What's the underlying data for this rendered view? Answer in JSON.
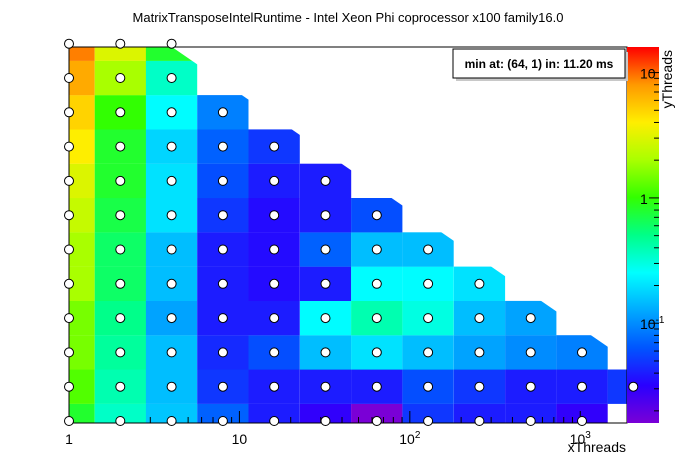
{
  "chart_data": {
    "type": "heatmap",
    "title": "MatrixTransposeIntelRuntime - Intel Xeon Phi coprocessor x100 family16.0",
    "xlabel": "xThreads",
    "ylabel": "yThreads",
    "x_scale": "log2",
    "y_scale": "log2",
    "z_scale": "log",
    "x_tick_labels": [
      "1",
      "10",
      "10",
      "10"
    ],
    "x_tick_exponents": [
      "",
      "",
      "2",
      "3"
    ],
    "z_tick_labels": [
      "10",
      "1",
      "10"
    ],
    "z_tick_exponents": [
      "",
      "",
      "-1"
    ],
    "x_values": [
      1,
      2,
      4,
      8,
      16,
      32,
      64,
      128,
      256,
      512,
      1024,
      2048
    ],
    "y_values": [
      1,
      2,
      4,
      8,
      16,
      32,
      64,
      128,
      256,
      512,
      1024,
      2048
    ],
    "annotation": "min at: (64, 1) in: 11.20 ms",
    "colors": {
      "palette": [
        "#7a00d6",
        "#2a00ff",
        "#0055ff",
        "#00aaff",
        "#00ffff",
        "#00ff88",
        "#33ff00",
        "#aaff00",
        "#ffee00",
        "#ff9900",
        "#ff0000"
      ]
    },
    "series": [
      {
        "name": "",
        "cells": [
          {
            "x": 1,
            "y": 1,
            "z": 0.8
          },
          {
            "x": 2,
            "y": 1,
            "z": 0.35
          },
          {
            "x": 4,
            "y": 1,
            "z": 0.16
          },
          {
            "x": 8,
            "y": 1,
            "z": 0.07
          },
          {
            "x": 16,
            "y": 1,
            "z": 0.04
          },
          {
            "x": 32,
            "y": 1,
            "z": 0.03
          },
          {
            "x": 64,
            "y": 1,
            "z": 0.0112
          },
          {
            "x": 128,
            "y": 1,
            "z": 0.05
          },
          {
            "x": 256,
            "y": 1,
            "z": 0.04
          },
          {
            "x": 512,
            "y": 1,
            "z": 0.04
          },
          {
            "x": 1024,
            "y": 1,
            "z": 0.03
          },
          {
            "x": 1,
            "y": 2,
            "z": 1.2
          },
          {
            "x": 2,
            "y": 2,
            "z": 0.4
          },
          {
            "x": 4,
            "y": 2,
            "z": 0.15
          },
          {
            "x": 8,
            "y": 2,
            "z": 0.05
          },
          {
            "x": 16,
            "y": 2,
            "z": 0.04
          },
          {
            "x": 32,
            "y": 2,
            "z": 0.04
          },
          {
            "x": 64,
            "y": 2,
            "z": 0.04
          },
          {
            "x": 128,
            "y": 2,
            "z": 0.06
          },
          {
            "x": 256,
            "y": 2,
            "z": 0.05
          },
          {
            "x": 512,
            "y": 2,
            "z": 0.04
          },
          {
            "x": 1024,
            "y": 2,
            "z": 0.04
          },
          {
            "x": 2048,
            "y": 2,
            "z": 0.05
          },
          {
            "x": 1,
            "y": 4,
            "z": 1.5
          },
          {
            "x": 2,
            "y": 4,
            "z": 0.45
          },
          {
            "x": 4,
            "y": 4,
            "z": 0.15
          },
          {
            "x": 8,
            "y": 4,
            "z": 0.045
          },
          {
            "x": 16,
            "y": 4,
            "z": 0.06
          },
          {
            "x": 32,
            "y": 4,
            "z": 0.15
          },
          {
            "x": 64,
            "y": 4,
            "z": 0.2
          },
          {
            "x": 128,
            "y": 4,
            "z": 0.15
          },
          {
            "x": 256,
            "y": 4,
            "z": 0.12
          },
          {
            "x": 512,
            "y": 4,
            "z": 0.1
          },
          {
            "x": 1024,
            "y": 4,
            "z": 0.09
          },
          {
            "x": 1,
            "y": 8,
            "z": 1.5
          },
          {
            "x": 2,
            "y": 8,
            "z": 0.5
          },
          {
            "x": 4,
            "y": 8,
            "z": 0.12
          },
          {
            "x": 8,
            "y": 8,
            "z": 0.04
          },
          {
            "x": 16,
            "y": 8,
            "z": 0.04
          },
          {
            "x": 32,
            "y": 8,
            "z": 0.25
          },
          {
            "x": 64,
            "y": 8,
            "z": 0.4
          },
          {
            "x": 128,
            "y": 8,
            "z": 0.3
          },
          {
            "x": 256,
            "y": 8,
            "z": 0.15
          },
          {
            "x": 512,
            "y": 8,
            "z": 0.12
          },
          {
            "x": 1,
            "y": 16,
            "z": 2.0
          },
          {
            "x": 2,
            "y": 16,
            "z": 0.6
          },
          {
            "x": 4,
            "y": 16,
            "z": 0.15
          },
          {
            "x": 8,
            "y": 16,
            "z": 0.04
          },
          {
            "x": 16,
            "y": 16,
            "z": 0.035
          },
          {
            "x": 32,
            "y": 16,
            "z": 0.04
          },
          {
            "x": 64,
            "y": 16,
            "z": 0.25
          },
          {
            "x": 128,
            "y": 16,
            "z": 0.25
          },
          {
            "x": 256,
            "y": 16,
            "z": 0.2
          },
          {
            "x": 1,
            "y": 32,
            "z": 2.0
          },
          {
            "x": 2,
            "y": 32,
            "z": 0.6
          },
          {
            "x": 4,
            "y": 32,
            "z": 0.15
          },
          {
            "x": 8,
            "y": 32,
            "z": 0.04
          },
          {
            "x": 16,
            "y": 32,
            "z": 0.035
          },
          {
            "x": 32,
            "y": 32,
            "z": 0.07
          },
          {
            "x": 64,
            "y": 32,
            "z": 0.15
          },
          {
            "x": 128,
            "y": 32,
            "z": 0.15
          },
          {
            "x": 1,
            "y": 64,
            "z": 2.5
          },
          {
            "x": 2,
            "y": 64,
            "z": 0.7
          },
          {
            "x": 4,
            "y": 64,
            "z": 0.2
          },
          {
            "x": 8,
            "y": 64,
            "z": 0.05
          },
          {
            "x": 16,
            "y": 64,
            "z": 0.035
          },
          {
            "x": 32,
            "y": 64,
            "z": 0.04
          },
          {
            "x": 64,
            "y": 64,
            "z": 0.06
          },
          {
            "x": 1,
            "y": 128,
            "z": 3.0
          },
          {
            "x": 2,
            "y": 128,
            "z": 0.8
          },
          {
            "x": 4,
            "y": 128,
            "z": 0.2
          },
          {
            "x": 8,
            "y": 128,
            "z": 0.06
          },
          {
            "x": 16,
            "y": 128,
            "z": 0.04
          },
          {
            "x": 32,
            "y": 128,
            "z": 0.04
          },
          {
            "x": 1,
            "y": 256,
            "z": 4.0
          },
          {
            "x": 2,
            "y": 256,
            "z": 0.8
          },
          {
            "x": 4,
            "y": 256,
            "z": 0.18
          },
          {
            "x": 8,
            "y": 256,
            "z": 0.07
          },
          {
            "x": 16,
            "y": 256,
            "z": 0.05
          },
          {
            "x": 1,
            "y": 512,
            "z": 5.0
          },
          {
            "x": 2,
            "y": 512,
            "z": 1.0
          },
          {
            "x": 4,
            "y": 512,
            "z": 0.25
          },
          {
            "x": 8,
            "y": 512,
            "z": 0.09
          },
          {
            "x": 1,
            "y": 1024,
            "z": 7.0
          },
          {
            "x": 2,
            "y": 1024,
            "z": 2.0
          },
          {
            "x": 4,
            "y": 1024,
            "z": 0.35
          },
          {
            "x": 1,
            "y": 2048,
            "z": 9.0
          },
          {
            "x": 2,
            "y": 2048,
            "z": 3.0
          },
          {
            "x": 4,
            "y": 2048,
            "z": 0.8
          }
        ]
      }
    ]
  }
}
